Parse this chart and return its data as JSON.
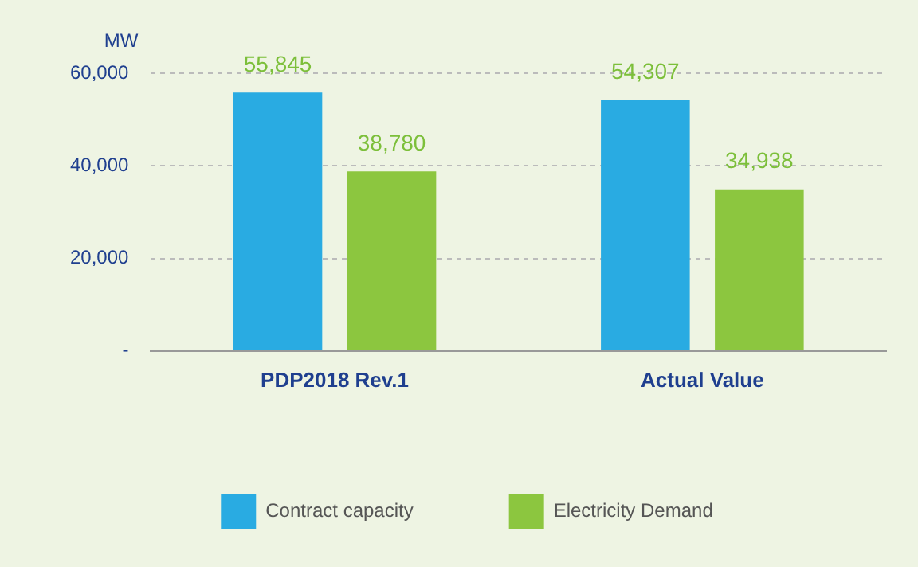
{
  "chart_data": {
    "type": "bar",
    "ylabel": "MW",
    "categories": [
      "PDP2018 Rev.1",
      "Actual Value"
    ],
    "series": [
      {
        "name": "Contract capacity",
        "color": "#29abe2",
        "values": [
          55845,
          54307
        ]
      },
      {
        "name": "Electricity Demand",
        "color": "#8cc63f",
        "values": [
          38780,
          34938
        ]
      }
    ],
    "ylim": [
      0,
      60000
    ],
    "yticks": [
      {
        "value": 0,
        "label": "-"
      },
      {
        "value": 20000,
        "label": "20,000"
      },
      {
        "value": 40000,
        "label": "40,000"
      },
      {
        "value": 60000,
        "label": "60,000"
      }
    ],
    "value_labels": [
      [
        "55,845",
        "54,307"
      ],
      [
        "38,780",
        "34,938"
      ]
    ],
    "grid": "y",
    "legend": "bottom"
  }
}
